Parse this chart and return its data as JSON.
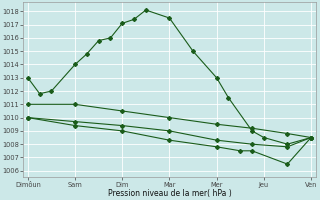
{
  "line1_x": [
    0,
    0.25,
    0.5,
    1.0,
    1.25,
    1.5,
    1.75,
    2.0,
    2.25,
    2.5,
    3.0,
    3.5,
    4.0,
    4.25,
    4.75,
    5.0,
    5.5,
    6.0
  ],
  "line1_y": [
    1013.0,
    1011.8,
    1012.0,
    1014.0,
    1014.8,
    1015.8,
    1016.0,
    1017.1,
    1017.4,
    1018.1,
    1017.5,
    1015.0,
    1013.0,
    1011.5,
    1009.0,
    1008.5,
    1008.0,
    1008.5
  ],
  "line2_x": [
    0,
    1.0,
    2.0,
    3.0,
    4.0,
    4.75,
    5.5,
    6.0
  ],
  "line2_y": [
    1011.0,
    1011.0,
    1010.5,
    1010.0,
    1009.5,
    1009.2,
    1008.8,
    1008.5
  ],
  "line3_x": [
    0,
    1.0,
    2.0,
    3.0,
    4.0,
    4.75,
    5.5,
    6.0
  ],
  "line3_y": [
    1010.0,
    1009.7,
    1009.4,
    1009.0,
    1008.3,
    1008.0,
    1007.8,
    1008.5
  ],
  "line4_x": [
    0,
    1.0,
    2.0,
    3.0,
    4.0,
    4.5,
    4.75,
    5.5,
    6.0
  ],
  "line4_y": [
    1010.0,
    1009.4,
    1009.0,
    1008.3,
    1007.8,
    1007.5,
    1007.5,
    1006.5,
    1008.5
  ],
  "color": "#1a5c1a",
  "bg_color": "#cce8e8",
  "grid_color": "#ffffff",
  "xlabel": "Pression niveau de la mer( hPa )",
  "ylim_min": 1005.5,
  "ylim_max": 1018.7,
  "yticks": [
    1006,
    1007,
    1008,
    1009,
    1010,
    1011,
    1012,
    1013,
    1014,
    1015,
    1016,
    1017,
    1018
  ],
  "xtick_positions": [
    0,
    1,
    2,
    3,
    4,
    5,
    6
  ],
  "xtick_labels": [
    "Dimôun",
    "Sam",
    "Dim",
    "Mar",
    "Mer",
    "Jeu",
    "Ven"
  ]
}
